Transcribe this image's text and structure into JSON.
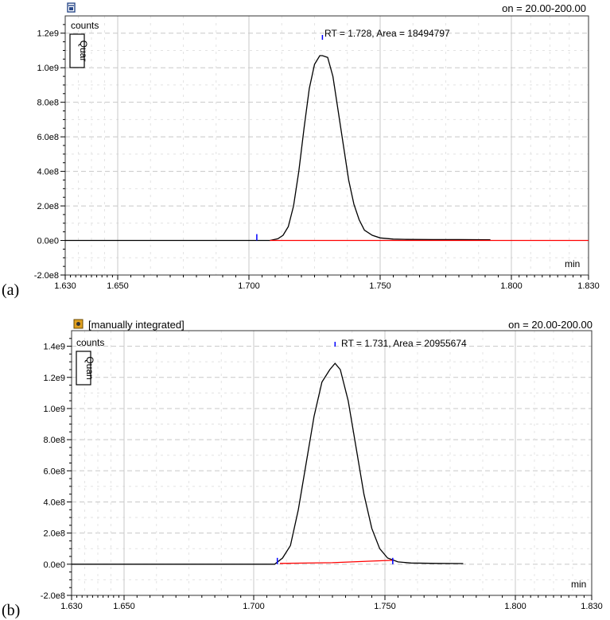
{
  "panels": [
    {
      "letter": "(a)",
      "header_left": "",
      "header_right": "on = 20.00-200.00",
      "counts_label": "counts",
      "box_label": "Quar",
      "x_unit": "min",
      "annotation": "RT = 1.728, Area = 18494797",
      "icon": "calendar-icon"
    },
    {
      "letter": "(b)",
      "header_left": "[manually integrated]",
      "header_right": "on = 20.00-200.00",
      "counts_label": "counts",
      "box_label": "Quan",
      "x_unit": "min",
      "annotation": "RT = 1.731, Area = 20955674",
      "icon": "bookmark-icon"
    }
  ],
  "chart_data": [
    {
      "type": "line",
      "x_ticks": [
        "1.630",
        "1.650",
        "1.700",
        "1.750",
        "1.800",
        "1.830"
      ],
      "y_ticks": [
        "-2.0e8",
        "0.0e0",
        "2.0e8",
        "4.0e8",
        "6.0e8",
        "8.0e8",
        "1.0e9",
        "1.2e9"
      ],
      "xlim": [
        1.63,
        1.83
      ],
      "ylim": [
        -200000000.0,
        1200000000.0
      ],
      "series": [
        {
          "color": "#000000",
          "x": [
            1.63,
            1.705,
            1.708,
            1.711,
            1.713,
            1.715,
            1.717,
            1.719,
            1.721,
            1.723,
            1.725,
            1.727,
            1.728,
            1.73,
            1.732,
            1.734,
            1.736,
            1.738,
            1.74,
            1.742,
            1.744,
            1.747,
            1.75,
            1.755,
            1.76,
            1.77,
            1.78,
            1.792
          ],
          "y": [
            0,
            0,
            0,
            10000000.0,
            30000000.0,
            80000000.0,
            200000000.0,
            400000000.0,
            650000000.0,
            880000000.0,
            1020000000.0,
            1070000000.0,
            1070000000.0,
            1060000000.0,
            950000000.0,
            750000000.0,
            550000000.0,
            350000000.0,
            210000000.0,
            120000000.0,
            60000000.0,
            30000000.0,
            15000000.0,
            8000000.0,
            6000000.0,
            5000000.0,
            5000000.0,
            4000000.0
          ]
        },
        {
          "color": "#ff0000",
          "x": [
            1.708,
            1.83
          ],
          "y": [
            0,
            0
          ]
        }
      ],
      "markers_x": [
        1.703,
        1.728
      ]
    },
    {
      "type": "line",
      "x_ticks": [
        "1.630",
        "1.650",
        "1.700",
        "1.750",
        "1.800",
        "1.830"
      ],
      "y_ticks": [
        "-2.0e8",
        "0.0e0",
        "2.0e8",
        "4.0e8",
        "6.0e8",
        "8.0e8",
        "1.0e9",
        "1.2e9",
        "1.4e9"
      ],
      "xlim": [
        1.63,
        1.83
      ],
      "ylim": [
        -200000000.0,
        1400000000.0
      ],
      "series": [
        {
          "color": "#000000",
          "x": [
            1.63,
            1.708,
            1.711,
            1.714,
            1.717,
            1.72,
            1.723,
            1.726,
            1.729,
            1.731,
            1.733,
            1.736,
            1.739,
            1.742,
            1.745,
            1.748,
            1.751,
            1.755,
            1.76,
            1.77,
            1.78
          ],
          "y": [
            0,
            0,
            40000000.0,
            120000000.0,
            350000000.0,
            650000000.0,
            950000000.0,
            1170000000.0,
            1250000000.0,
            1290000000.0,
            1250000000.0,
            1050000000.0,
            750000000.0,
            450000000.0,
            230000000.0,
            100000000.0,
            40000000.0,
            15000000.0,
            8000000.0,
            5000000.0,
            4000000.0
          ]
        },
        {
          "color": "#ff0000",
          "x": [
            1.71,
            1.73,
            1.745,
            1.753
          ],
          "y": [
            5000000.0,
            10000000.0,
            20000000.0,
            25000000.0
          ]
        }
      ],
      "markers_x": [
        1.709,
        1.731,
        1.753
      ]
    }
  ]
}
